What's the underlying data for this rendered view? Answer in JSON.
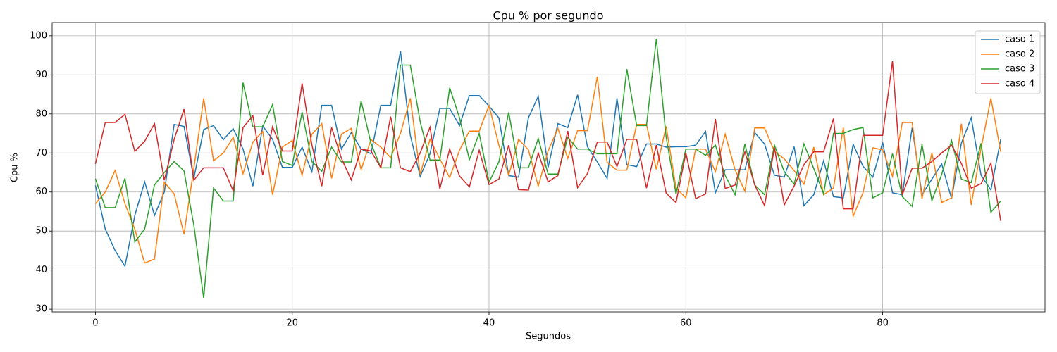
{
  "chart_data": {
    "type": "line",
    "title": "Cpu % por segundo",
    "x_label": "Segundos",
    "y_label": "Cpu %",
    "x": [
      0,
      1,
      2,
      3,
      4,
      5,
      6,
      7,
      8,
      9,
      10,
      11,
      12,
      13,
      14,
      15,
      16,
      17,
      18,
      19,
      20,
      21,
      22,
      23,
      24,
      25,
      26,
      27,
      28,
      29,
      30,
      31,
      32,
      33,
      34,
      35,
      36,
      37,
      38,
      39,
      40,
      41,
      42,
      43,
      44,
      45,
      46,
      47,
      48,
      49,
      50,
      51,
      52,
      53,
      54,
      55,
      56,
      57,
      58,
      59,
      60,
      61,
      62,
      63,
      64,
      65,
      66,
      67,
      68,
      69,
      70,
      71,
      72,
      73,
      74,
      75,
      76,
      77,
      78,
      79,
      80,
      81,
      82,
      83,
      84,
      85,
      86,
      87,
      88,
      89,
      90,
      91,
      92
    ],
    "series": [
      {
        "name": "caso 1",
        "color": "#1f77b4",
        "values": [
          61.7,
          50.5,
          45,
          41,
          54,
          62.6,
          54,
          60,
          77.3,
          76.8,
          63.5,
          76,
          77,
          73.4,
          76.2,
          71,
          61.5,
          76.9,
          73.5,
          66.3,
          66.3,
          71.5,
          65.2,
          82.2,
          82.2,
          71,
          75.2,
          71,
          69.8,
          82.2,
          82.2,
          96.1,
          74.5,
          64,
          69.8,
          81.4,
          81.4,
          77,
          84.7,
          84.7,
          82,
          79,
          64.2,
          63.8,
          79,
          84.5,
          66.3,
          77.5,
          76.5,
          84.9,
          71.6,
          67.7,
          63.5,
          84,
          67,
          66.5,
          72.3,
          72.3,
          71.5,
          71.6,
          71.6,
          72,
          75.5,
          59.8,
          65.7,
          65.7,
          65.7,
          75.2,
          72.3,
          64.3,
          63.8,
          71.6,
          56.5,
          59.3,
          68,
          58.8,
          58.5,
          72.2,
          66.6,
          63.8,
          72.7,
          59.8,
          59.3,
          76.5,
          59.3,
          63.3,
          67.2,
          58.3,
          72.5,
          79,
          64.3,
          60.5,
          73.5
        ]
      },
      {
        "name": "caso 2",
        "color": "#ff7f0e",
        "values": [
          57,
          60,
          65.5,
          57,
          50.5,
          41.8,
          42.8,
          62.5,
          59.5,
          49.2,
          66,
          84,
          68,
          70,
          74,
          64.7,
          72.8,
          75.5,
          59.3,
          71.5,
          73.2,
          64.3,
          74.8,
          77.5,
          63.5,
          74.8,
          76.3,
          65.7,
          73.4,
          71.5,
          68.8,
          75,
          84,
          64.5,
          73.5,
          68.5,
          63.7,
          70.7,
          75.6,
          75.6,
          82.2,
          72,
          64.3,
          73.5,
          70.8,
          61.5,
          70.5,
          76.3,
          68.6,
          75.7,
          75.7,
          89.5,
          67.6,
          65.6,
          65.6,
          77.3,
          77.3,
          65.8,
          76.8,
          61,
          58.5,
          71,
          71,
          65.2,
          74.8,
          65.7,
          60.2,
          76.4,
          76.4,
          70.4,
          68.5,
          65.5,
          62,
          71.5,
          59.3,
          61,
          76.5,
          53.8,
          59.8,
          71.3,
          70.8,
          64,
          77.8,
          77.8,
          58.3,
          70,
          57.3,
          58.5,
          77.5,
          56.7,
          71.2,
          84,
          70.3
        ]
      },
      {
        "name": "caso 3",
        "color": "#2ca02c",
        "values": [
          63.4,
          56,
          56,
          63.5,
          47.2,
          50.5,
          61.8,
          65,
          67.8,
          65.4,
          51.5,
          32.8,
          61,
          57.7,
          57.7,
          88,
          76.7,
          76.7,
          82.4,
          67.8,
          66.8,
          80.5,
          67.8,
          65.3,
          71.5,
          67.7,
          67.7,
          83.3,
          72.5,
          66.2,
          66.2,
          92.5,
          92.5,
          78,
          68.2,
          68.2,
          86.7,
          79,
          68.3,
          75,
          62.5,
          67.7,
          80.4,
          66.2,
          66.2,
          73.7,
          64.6,
          64.6,
          74,
          71,
          71,
          69.8,
          69.8,
          69.8,
          91.5,
          77,
          77,
          99.2,
          74,
          59.5,
          71,
          71,
          69.4,
          72,
          64.2,
          59.3,
          72.3,
          61.8,
          59.3,
          72,
          65.2,
          62,
          72.3,
          66,
          59.5,
          75,
          75,
          76,
          76.5,
          58.5,
          59.8,
          69.8,
          58.8,
          56.3,
          72.2,
          57.8,
          64.5,
          73.2,
          63.3,
          62.4,
          72.5,
          54.8,
          57.7
        ]
      },
      {
        "name": "caso 4",
        "color": "#d62728",
        "values": [
          67.2,
          77.8,
          77.8,
          79.9,
          70.4,
          73,
          77.5,
          63,
          73.5,
          81.2,
          63,
          66.2,
          66.2,
          66.2,
          60.3,
          76.5,
          79.5,
          64.3,
          76.7,
          70.5,
          70.5,
          87.8,
          72,
          61.5,
          76.5,
          68.6,
          63.1,
          71,
          70.5,
          66.2,
          79.3,
          66.2,
          65.2,
          70,
          76.6,
          60.8,
          71,
          64.1,
          61.3,
          70.7,
          61.9,
          63.3,
          72,
          60.6,
          60.5,
          70,
          62.6,
          64.2,
          75.6,
          61.1,
          64.7,
          72.8,
          72.8,
          66.5,
          73.5,
          73.5,
          61,
          72,
          59.7,
          57.3,
          70,
          58.3,
          59.5,
          78.7,
          60.9,
          61.8,
          70.3,
          61.8,
          56.5,
          71.4,
          56.7,
          61.5,
          67,
          70.3,
          70.3,
          78.8,
          55.7,
          55.7,
          74.5,
          74.5,
          74.5,
          93.5,
          59.3,
          66.1,
          66.1,
          67.8,
          70,
          72,
          67.3,
          61,
          62.1,
          67.4,
          52.6
        ]
      }
    ],
    "xlim": [
      -4.4,
      96.5
    ],
    "ylim": [
      29.3,
      103.4
    ],
    "xticks": [
      0,
      20,
      40,
      60,
      80
    ],
    "yticks": [
      30,
      40,
      50,
      60,
      70,
      80,
      90,
      100
    ],
    "grid": true,
    "legend": "upper right"
  }
}
